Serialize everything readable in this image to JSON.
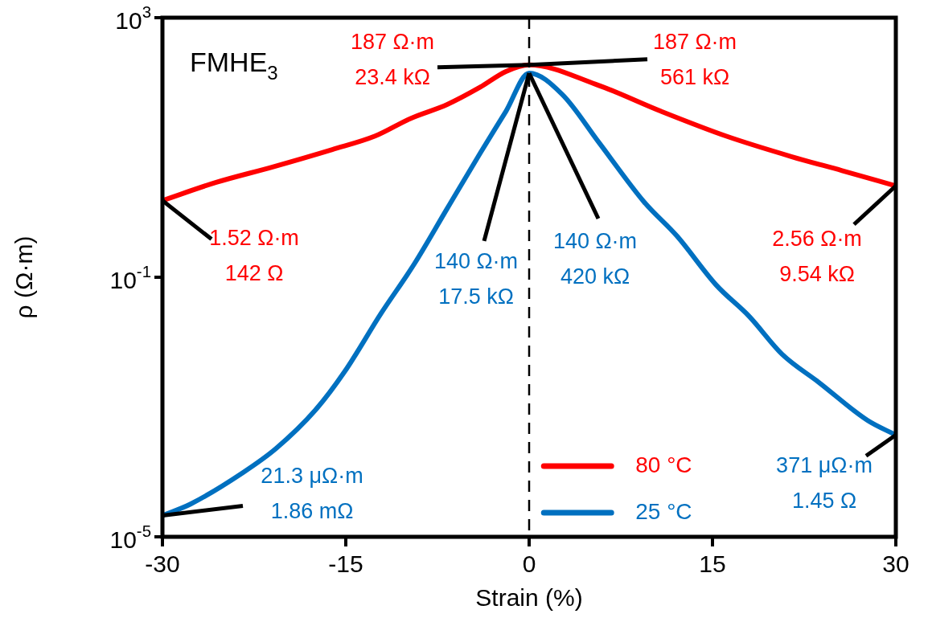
{
  "chart_data": {
    "type": "line",
    "xlabel": "Strain (%)",
    "ylabel": "ρ (Ω·m)",
    "log": "y",
    "xlim": [
      -30,
      30
    ],
    "xticks": [
      -30,
      -15,
      0,
      15,
      30
    ],
    "ylim": [
      1e-05,
      1000
    ],
    "yticks": [
      {
        "value": 1e-05,
        "label": "10$^{-5}$"
      },
      {
        "value": 0.1,
        "label": "10$^{-1}$"
      },
      {
        "value": 1000,
        "label": "10$^{3}$"
      }
    ],
    "grid": false,
    "legend": "bottom right",
    "marker": "none",
    "series": [
      {
        "name": "80 °C",
        "color": "#ff0000",
        "x": [
          -30,
          -25.6,
          -21,
          -16.1,
          -12.6,
          -9.7,
          -6.7,
          -4,
          -1.9,
          0,
          5.4,
          10.8,
          16.1,
          21.5,
          25.6,
          30
        ],
        "values": [
          1.52,
          2.9,
          5,
          9.3,
          15,
          28,
          46,
          85,
          148,
          187,
          95,
          36,
          15,
          7.2,
          4.4,
          2.56
        ]
      },
      {
        "name": "25 °C",
        "color": "#0070c0",
        "x": [
          -30,
          -27.7,
          -23.4,
          -20.7,
          -17.5,
          -15.1,
          -12.1,
          -9.4,
          -6.7,
          -4,
          -1.9,
          0,
          2.7,
          5.7,
          9.4,
          12.1,
          15.3,
          18,
          20.7,
          23.7,
          27.7,
          30
        ],
        "values": [
          2.13e-05,
          3.2e-05,
          9.8e-05,
          0.00023,
          0.00089,
          0.0035,
          0.028,
          0.16,
          1.15,
          8.2,
          36,
          140,
          66,
          12,
          1.45,
          0.43,
          0.076,
          0.025,
          0.0065,
          0.0024,
          0.00062,
          0.000371
        ]
      }
    ],
    "ref_lines": [
      {
        "axis": "x",
        "value": 0,
        "color": "#000000",
        "line_style": "dashed"
      }
    ],
    "annotations": [
      "FMHE$_{3}$",
      {
        "text": "187 Ω·m\n23.4 kΩ",
        "x": 0,
        "y": 187
      },
      {
        "text": "187 Ω·m\n561 kΩ",
        "x": 0,
        "y": 187
      },
      {
        "text": "1.52 Ω·m\n142 Ω",
        "x": -30,
        "y": 1.52
      },
      {
        "text": "21.3 μΩ·m\n1.86 mΩ",
        "x": -30,
        "y": 2.13e-05
      },
      {
        "text": "140 Ω·m\n17.5 kΩ",
        "x": 0,
        "y": 140
      },
      {
        "text": "140 Ω·m\n420 kΩ",
        "x": 0,
        "y": 140
      },
      {
        "text": "2.56 Ω·m\n9.54 kΩ",
        "x": 30,
        "y": 2.56
      },
      {
        "text": "371 μΩ·m\n1.45 Ω",
        "x": 30,
        "y": 0.000371
      }
    ]
  }
}
